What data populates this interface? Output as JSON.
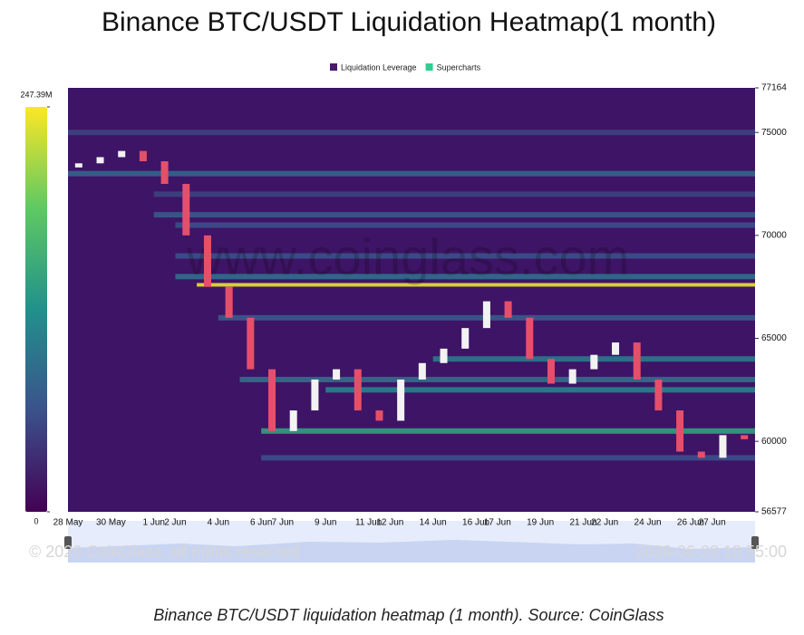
{
  "chart_data": {
    "type": "heatmap-candles",
    "title": "Binance BTC/USDT Liquidation Heatmap(1 month)",
    "legend": [
      {
        "name": "Liquidation Leverage",
        "color": "#4a1a6e"
      },
      {
        "name": "Supercharts",
        "color": "#2ecf8f"
      }
    ],
    "x": [
      "28 May",
      "29 May",
      "30 May",
      "31 May",
      "1 Jun",
      "2 Jun",
      "3 Jun",
      "4 Jun",
      "5 Jun",
      "6 Jun",
      "7 Jun",
      "8 Jun",
      "9 Jun",
      "10 Jun",
      "11 Jun",
      "12 Jun",
      "13 Jun",
      "14 Jun",
      "15 Jun",
      "16 Jun",
      "17 Jun",
      "18 Jun",
      "19 Jun",
      "20 Jun",
      "21 Jun",
      "22 Jun",
      "23 Jun",
      "24 Jun",
      "25 Jun",
      "26 Jun",
      "27 Jun",
      "28 Jun"
    ],
    "xticks": [
      "28 May",
      "30 May",
      "1 Jun",
      "2 Jun",
      "4 Jun",
      "6 Jun",
      "7 Jun",
      "9 Jun",
      "11 Jun",
      "12 Jun",
      "14 Jun",
      "16 Jun",
      "17 Jun",
      "19 Jun",
      "21 Jun",
      "22 Jun",
      "24 Jun",
      "26 Jun",
      "27 Jun"
    ],
    "open": [
      73300,
      73500,
      73800,
      74100,
      73600,
      72500,
      70000,
      67500,
      66000,
      63500,
      60500,
      61500,
      63000,
      63500,
      61500,
      61000,
      63000,
      63800,
      64500,
      65500,
      66800,
      66000,
      64000,
      62800,
      63500,
      64200,
      64800,
      63000,
      61500,
      59500,
      59200,
      60300
    ],
    "close": [
      73500,
      73800,
      74100,
      73600,
      72500,
      70000,
      67500,
      66000,
      63500,
      60500,
      61500,
      63000,
      63500,
      61500,
      61000,
      63000,
      63800,
      64500,
      65500,
      66800,
      66000,
      64000,
      62800,
      63500,
      64200,
      64800,
      63000,
      61500,
      59500,
      59200,
      60300,
      60100
    ],
    "levels": [
      {
        "price": 75000,
        "value": 50,
        "start": "28 May"
      },
      {
        "price": 73000,
        "value": 80,
        "start": "28 May"
      },
      {
        "price": 72000,
        "value": 50,
        "start": "1 Jun"
      },
      {
        "price": 71000,
        "value": 70,
        "start": "1 Jun"
      },
      {
        "price": 70500,
        "value": 60,
        "start": "2 Jun"
      },
      {
        "price": 69000,
        "value": 60,
        "start": "2 Jun"
      },
      {
        "price": 68000,
        "value": 90,
        "start": "2 Jun"
      },
      {
        "price": 67600,
        "value": 240,
        "start": "3 Jun"
      },
      {
        "price": 66000,
        "value": 70,
        "start": "4 Jun"
      },
      {
        "price": 64000,
        "value": 100,
        "start": "14 Jun"
      },
      {
        "price": 63000,
        "value": 90,
        "start": "5 Jun"
      },
      {
        "price": 62500,
        "value": 110,
        "start": "9 Jun"
      },
      {
        "price": 60500,
        "value": 140,
        "start": "6 Jun"
      },
      {
        "price": 59200,
        "value": 60,
        "start": "6 Jun"
      }
    ],
    "ylim": [
      56577,
      77164
    ],
    "yticks": [
      56577,
      60000,
      65000,
      70000,
      75000,
      77164
    ],
    "colorlim": [
      0,
      247.39
    ],
    "colorticks": [
      0,
      {
        "value": 247.39,
        "label": "247.39M"
      }
    ],
    "watermark": "www.coinglass.com",
    "copyright": "© 2026 CoinGlass, all rights reserved",
    "timestamp": "2026-06-28 18:55:00"
  },
  "caption": "Binance BTC/USDT liquidation heatmap (1 month). Source: CoinGlass"
}
